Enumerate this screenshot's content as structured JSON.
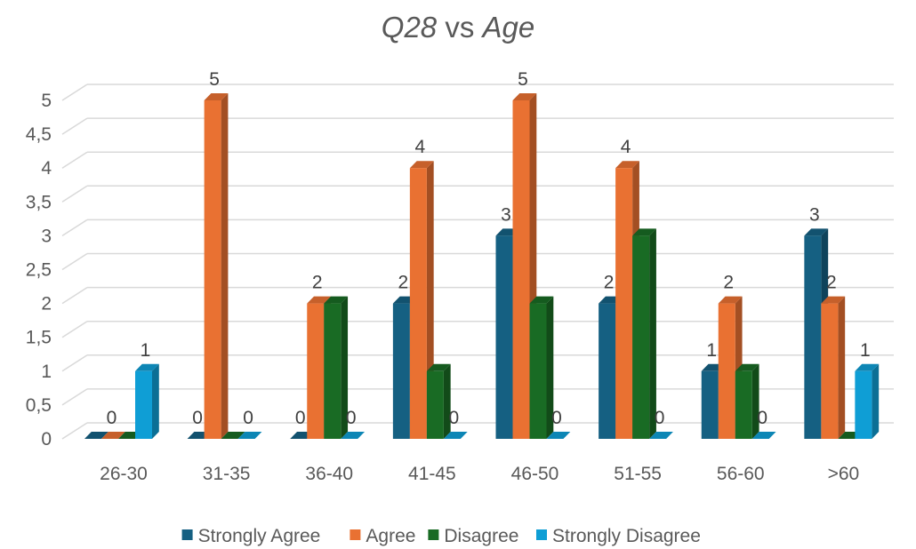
{
  "chart_data": {
    "type": "bar",
    "title_parts": [
      "Q28",
      " vs ",
      "Age"
    ],
    "categories": [
      "26-30",
      "31-35",
      "36-40",
      "41-45",
      "46-50",
      "51-55",
      "56-60",
      ">60"
    ],
    "series": [
      {
        "name": "Strongly Agree",
        "color": "#156082",
        "values": [
          0,
          0,
          0,
          2,
          3,
          2,
          1,
          3
        ]
      },
      {
        "name": "Agree",
        "color": "#E97132",
        "values": [
          0,
          5,
          2,
          4,
          5,
          4,
          2,
          2
        ]
      },
      {
        "name": "Disagree",
        "color": "#196B24",
        "values": [
          0,
          0,
          2,
          1,
          2,
          3,
          1,
          0
        ]
      },
      {
        "name": "Strongly Disagree",
        "color": "#0F9ED5",
        "values": [
          1,
          0,
          0,
          0,
          0,
          0,
          0,
          1
        ]
      }
    ],
    "data_labels": [
      {
        "category": "26-30",
        "series": "Agree",
        "value": "0"
      },
      {
        "category": "26-30",
        "series": "Strongly Disagree",
        "value": "1"
      },
      {
        "category": "31-35",
        "series": "Strongly Agree",
        "value": "0"
      },
      {
        "category": "31-35",
        "series": "Agree",
        "value": "5"
      },
      {
        "category": "31-35",
        "series": "Strongly Disagree",
        "value": "0"
      },
      {
        "category": "36-40",
        "series": "Strongly Agree",
        "value": "0"
      },
      {
        "category": "36-40",
        "series": "Agree",
        "value": "2"
      },
      {
        "category": "36-40",
        "series": "Strongly Disagree",
        "value": "0"
      },
      {
        "category": "41-45",
        "series": "Strongly Agree",
        "value": "2"
      },
      {
        "category": "41-45",
        "series": "Agree",
        "value": "4"
      },
      {
        "category": "41-45",
        "series": "Strongly Disagree",
        "value": "0"
      },
      {
        "category": "46-50",
        "series": "Strongly Agree",
        "value": "3"
      },
      {
        "category": "46-50",
        "series": "Agree",
        "value": "5"
      },
      {
        "category": "46-50",
        "series": "Strongly Disagree",
        "value": "0"
      },
      {
        "category": "51-55",
        "series": "Strongly Agree",
        "value": "2"
      },
      {
        "category": "51-55",
        "series": "Agree",
        "value": "4"
      },
      {
        "category": "51-55",
        "series": "Strongly Disagree",
        "value": "0"
      },
      {
        "category": "56-60",
        "series": "Strongly Agree",
        "value": "1"
      },
      {
        "category": "56-60",
        "series": "Agree",
        "value": "2"
      },
      {
        "category": "56-60",
        "series": "Strongly Disagree",
        "value": "0"
      },
      {
        "category": ">60",
        "series": "Strongly Agree",
        "value": "3"
      },
      {
        "category": ">60",
        "series": "Agree",
        "value": "2"
      },
      {
        "category": ">60",
        "series": "Strongly Disagree",
        "value": "1"
      }
    ],
    "ylim": [
      0,
      5
    ],
    "ytick_labels": [
      "0",
      "0,5",
      "1",
      "1,5",
      "2",
      "2,5",
      "3",
      "3,5",
      "4",
      "4,5",
      "5"
    ],
    "grid": true,
    "legend_position": "bottom",
    "style": "3d-clustered-column"
  }
}
